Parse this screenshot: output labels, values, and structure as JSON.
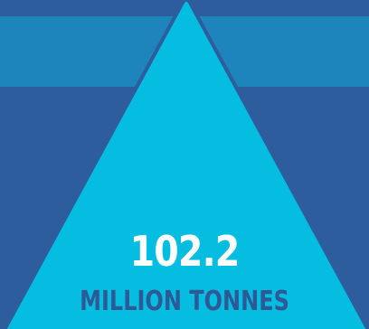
{
  "stat": {
    "value": "102.2",
    "unit": "MILLION TONNES"
  },
  "colors": {
    "background": "#2E5D9E",
    "band": "#1E84BC",
    "triangle": "#05BDE0",
    "value_text": "#FFFFFF",
    "unit_text": "#2D5A96"
  },
  "icons": {
    "shape": "triangle-icon"
  }
}
